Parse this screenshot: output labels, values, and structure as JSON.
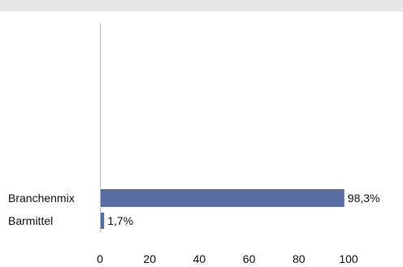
{
  "chart_data": {
    "type": "bar",
    "orientation": "horizontal",
    "categories": [
      "Branchenmix",
      "Barmittel"
    ],
    "values": [
      98.3,
      1.7
    ],
    "value_labels": [
      "98,3%",
      "1,7%"
    ],
    "xlim": [
      0,
      100
    ],
    "xticks": [
      0,
      20,
      40,
      60,
      80,
      100
    ],
    "tick_labels": [
      "0",
      "20",
      "40",
      "60",
      "80",
      "100"
    ],
    "grid": false,
    "legend": "none",
    "colors": {
      "bar": "#5b6ea3",
      "axis": "#bdbdbd",
      "header_bar": "#e6e6e6"
    }
  }
}
